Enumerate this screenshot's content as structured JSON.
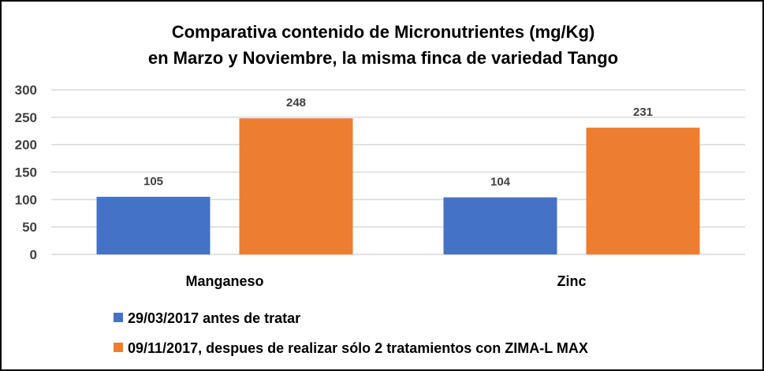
{
  "chart_data": {
    "type": "bar",
    "title": [
      "Comparativa contenido de Micronutrientes (mg/Kg)",
      "en Marzo y Noviembre, la misma finca de variedad Tango"
    ],
    "xlabel": "",
    "ylabel": "",
    "ylim": [
      0,
      300
    ],
    "yticks": [
      0,
      50,
      100,
      150,
      200,
      250,
      300
    ],
    "grid": true,
    "categories": [
      "Manganeso",
      "Zinc"
    ],
    "series": [
      {
        "name": "29/03/2017 antes de tratar",
        "color": "#4472C4",
        "values": [
          105,
          104
        ]
      },
      {
        "name": "09/11/2017, despues de realizar sólo 2 tratamientos con ZIMA-L MAX",
        "color": "#ED7D31",
        "values": [
          248,
          231
        ]
      }
    ],
    "legend_position": "bottom-left"
  }
}
